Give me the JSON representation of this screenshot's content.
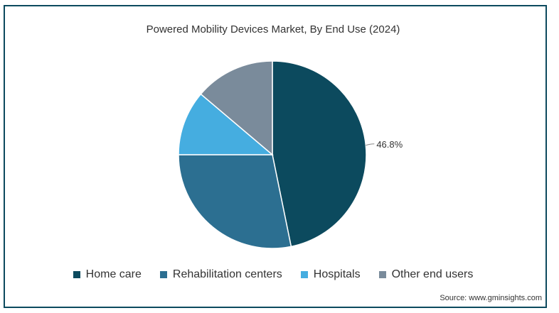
{
  "chart_data": {
    "type": "pie",
    "title": "Powered Mobility Devices Market, By End Use (2024)",
    "slices": [
      {
        "name": "Home care",
        "value": 46.8,
        "color": "#0c4a5e",
        "label": "46.8%"
      },
      {
        "name": "Rehabilitation centers",
        "value": 28.2,
        "color": "#2c6f91",
        "label": ""
      },
      {
        "name": "Hospitals",
        "value": 11.2,
        "color": "#45ade0",
        "label": ""
      },
      {
        "name": "Other end users",
        "value": 13.8,
        "color": "#7a8b9b",
        "label": ""
      }
    ],
    "legend_position": "bottom",
    "source": "Source: www.gminsights.com"
  }
}
